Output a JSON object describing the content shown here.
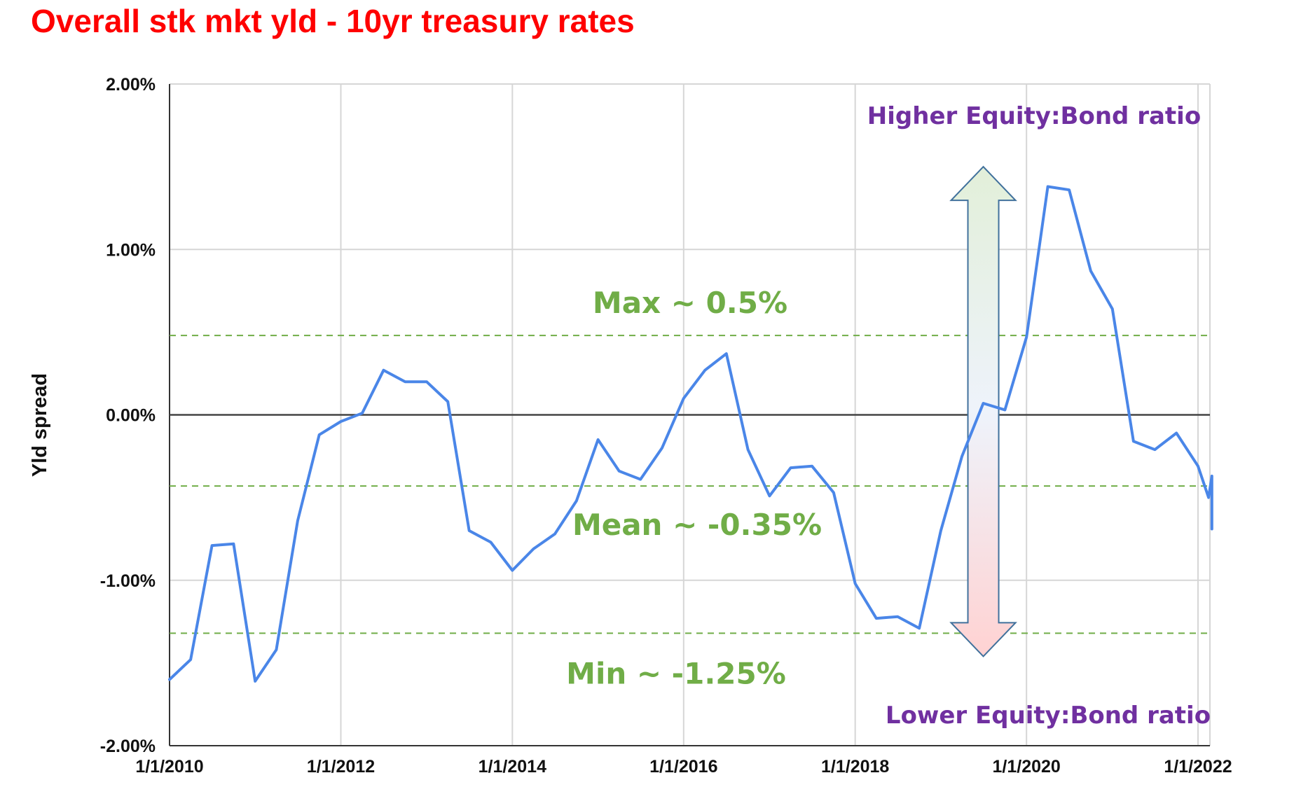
{
  "chart_data": {
    "type": "line",
    "title": "Overall stk mkt yld - 10yr treasury rates",
    "ylabel": "Yld spread",
    "xlabel": "",
    "x_range": [
      "2010-01-01",
      "2022-03-01"
    ],
    "ylim": [
      -0.02,
      0.02
    ],
    "y_ticks": [
      {
        "value": 0.02,
        "label": "2.00%"
      },
      {
        "value": 0.01,
        "label": "1.00%"
      },
      {
        "value": 0.0,
        "label": "0.00%"
      },
      {
        "value": -0.01,
        "label": "-1.00%"
      },
      {
        "value": -0.02,
        "label": "-2.00%"
      }
    ],
    "x_ticks": [
      {
        "date": "2010-01-01",
        "label": "1/1/2010"
      },
      {
        "date": "2012-01-01",
        "label": "1/1/2012"
      },
      {
        "date": "2014-01-01",
        "label": "1/1/2014"
      },
      {
        "date": "2016-01-01",
        "label": "1/1/2016"
      },
      {
        "date": "2018-01-01",
        "label": "1/1/2018"
      },
      {
        "date": "2020-01-01",
        "label": "1/1/2020"
      },
      {
        "date": "2022-01-01",
        "label": "1/1/2022"
      }
    ],
    "grid": true,
    "series": [
      {
        "color": "#4a86e8",
        "points": [
          [
            "2010-01-01",
            -0.016
          ],
          [
            "2010-04-01",
            -0.0148
          ],
          [
            "2010-07-01",
            -0.0079
          ],
          [
            "2010-10-01",
            -0.0078
          ],
          [
            "2011-01-01",
            -0.0161
          ],
          [
            "2011-04-01",
            -0.0142
          ],
          [
            "2011-07-01",
            -0.0064
          ],
          [
            "2011-10-01",
            -0.0012
          ],
          [
            "2012-01-01",
            -0.0004
          ],
          [
            "2012-04-01",
            0.0001
          ],
          [
            "2012-07-01",
            0.0027
          ],
          [
            "2012-10-01",
            0.002
          ],
          [
            "2013-01-01",
            0.002
          ],
          [
            "2013-04-01",
            0.0008
          ],
          [
            "2013-07-01",
            -0.007
          ],
          [
            "2013-10-01",
            -0.0077
          ],
          [
            "2014-01-01",
            -0.0094
          ],
          [
            "2014-04-01",
            -0.0081
          ],
          [
            "2014-07-01",
            -0.0072
          ],
          [
            "2014-10-01",
            -0.0052
          ],
          [
            "2015-01-01",
            -0.0015
          ],
          [
            "2015-04-01",
            -0.0034
          ],
          [
            "2015-07-01",
            -0.0039
          ],
          [
            "2015-10-01",
            -0.002
          ],
          [
            "2016-01-01",
            0.001
          ],
          [
            "2016-04-01",
            0.0027
          ],
          [
            "2016-07-01",
            0.0037
          ],
          [
            "2016-10-01",
            -0.0021
          ],
          [
            "2017-01-01",
            -0.0049
          ],
          [
            "2017-04-01",
            -0.0032
          ],
          [
            "2017-07-01",
            -0.0031
          ],
          [
            "2017-10-01",
            -0.0047
          ],
          [
            "2018-01-01",
            -0.0102
          ],
          [
            "2018-04-01",
            -0.0123
          ],
          [
            "2018-07-01",
            -0.0122
          ],
          [
            "2018-10-01",
            -0.0129
          ],
          [
            "2019-01-01",
            -0.007
          ],
          [
            "2019-04-01",
            -0.0025
          ],
          [
            "2019-07-01",
            0.0007
          ],
          [
            "2019-10-01",
            0.0003
          ],
          [
            "2020-01-01",
            0.0047
          ],
          [
            "2020-04-01",
            0.0138
          ],
          [
            "2020-07-01",
            0.0136
          ],
          [
            "2020-10-01",
            0.0087
          ],
          [
            "2021-01-01",
            0.0064
          ],
          [
            "2021-04-01",
            -0.0016
          ],
          [
            "2021-07-01",
            -0.0021
          ],
          [
            "2021-10-01",
            -0.0011
          ],
          [
            "2022-01-01",
            -0.0031
          ],
          [
            "2022-02-15",
            -0.005
          ],
          [
            "2022-03-01",
            -0.0037
          ],
          [
            "2022-03-01",
            -0.0069
          ]
        ]
      }
    ],
    "reference_lines": [
      {
        "value": 0.0048,
        "label": "Max ~ 0.5%",
        "style": "dashed",
        "color": "#70ad47"
      },
      {
        "value": -0.0043,
        "label": "Mean ~ -0.35%",
        "style": "dashed",
        "color": "#70ad47"
      },
      {
        "value": -0.0132,
        "label": "Min ~ -1.25%",
        "style": "dashed",
        "color": "#70ad47"
      },
      {
        "value": 0.0,
        "style": "solid",
        "color": "#444444"
      }
    ],
    "annotations": {
      "arrow": {
        "date": "2019-07-01",
        "y_top": 0.015,
        "y_bottom": -0.0146,
        "direction": "both"
      },
      "upper_label": "Higher Equity:Bond ratio",
      "lower_label": "Lower Equity:Bond ratio"
    },
    "colors": {
      "title": "#ff0000",
      "line": "#4a86e8",
      "ref_label": "#70ad47",
      "ratio_label": "#7030a0",
      "grid": "#d6d6d6"
    }
  }
}
